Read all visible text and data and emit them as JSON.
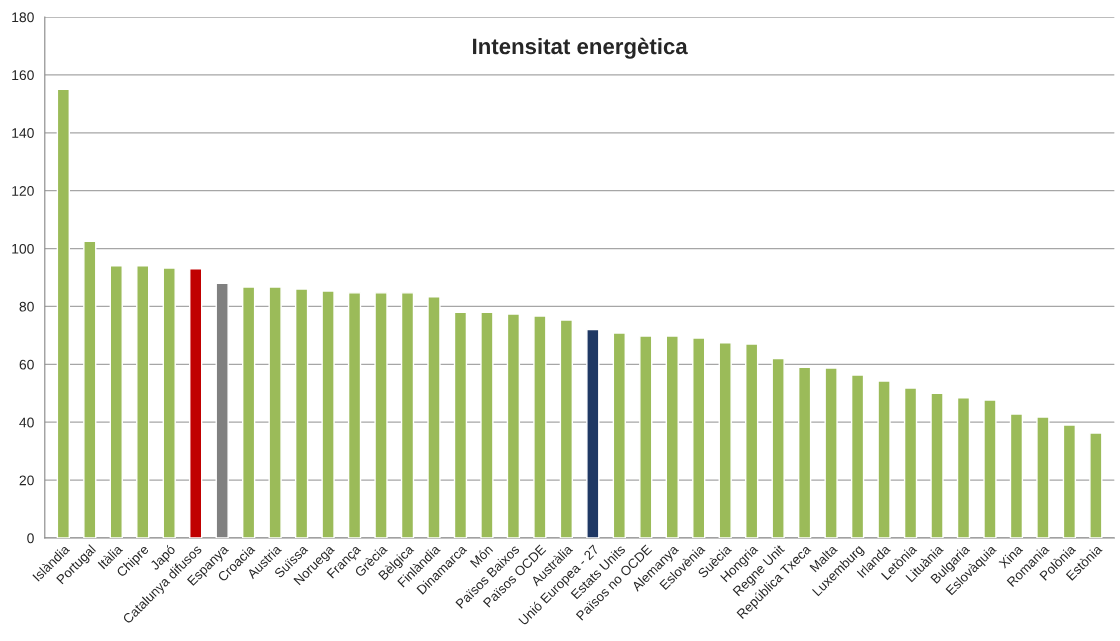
{
  "chart_data": {
    "type": "bar",
    "title": "Intensitat energètica",
    "categories": [
      "Islàndia",
      "Portugal",
      "Itàlia",
      "Chipre",
      "Japó",
      "Catalunya difusos",
      "Espanya",
      "Croacia",
      "Austria",
      "Suïssa",
      "Noruega",
      "França",
      "Grècia",
      "Bèlgica",
      "Finlàndia",
      "Dinamarca",
      "Món",
      "Països Baixos",
      "Països OCDE",
      "Austràlia",
      "Unió Europea - 27",
      "Estats Units",
      "Països no OCDE",
      "Alemanya",
      "Eslovènia",
      "Suècia",
      "Hongria",
      "Regne Unit",
      "República Txeca",
      "Malta",
      "Luxemburg",
      "Irlanda",
      "Letònia",
      "Lituània",
      "Bulgaria",
      "Eslovàquia",
      "Xina",
      "Romania",
      "Polònia",
      "Estònia"
    ],
    "values": [
      155,
      102.5,
      94,
      94,
      93.3,
      93,
      88,
      86.7,
      86.7,
      86,
      85.3,
      84.7,
      84.7,
      84.7,
      83.3,
      78,
      78,
      77.4,
      76.7,
      75.3,
      72,
      70.8,
      69.8,
      69.8,
      69.1,
      67.4,
      67,
      62,
      59,
      58.7,
      56.3,
      54.2,
      51.8,
      50,
      48.4,
      47.7,
      42.8,
      41.8,
      39,
      36.3
    ],
    "colors": [
      "#9bbb59",
      "#9bbb59",
      "#9bbb59",
      "#9bbb59",
      "#9bbb59",
      "#c00000",
      "#808080",
      "#9bbb59",
      "#9bbb59",
      "#9bbb59",
      "#9bbb59",
      "#9bbb59",
      "#9bbb59",
      "#9bbb59",
      "#9bbb59",
      "#9bbb59",
      "#9bbb59",
      "#9bbb59",
      "#9bbb59",
      "#9bbb59",
      "#1f3864",
      "#9bbb59",
      "#9bbb59",
      "#9bbb59",
      "#9bbb59",
      "#9bbb59",
      "#9bbb59",
      "#9bbb59",
      "#9bbb59",
      "#9bbb59",
      "#9bbb59",
      "#9bbb59",
      "#9bbb59",
      "#9bbb59",
      "#9bbb59",
      "#9bbb59",
      "#9bbb59",
      "#9bbb59",
      "#9bbb59",
      "#9bbb59"
    ],
    "ylim": [
      0,
      180
    ],
    "yticks": [
      0,
      20,
      40,
      60,
      80,
      100,
      120,
      140,
      160,
      180
    ],
    "grid": "y"
  }
}
